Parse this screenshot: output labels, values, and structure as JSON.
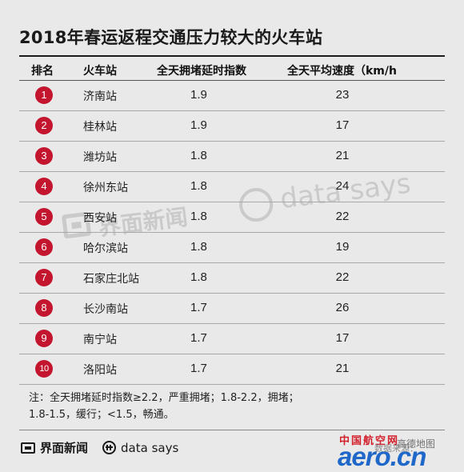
{
  "title": "2018年春运返程交通压力较大的火车站",
  "table": {
    "headers": {
      "rank": "排名",
      "station": "火车站",
      "index": "全天拥堵延时指数",
      "speed": "全天平均速度（km/h"
    },
    "rows": [
      {
        "rank": "1",
        "station": "济南站",
        "index": "1.9",
        "speed": "23"
      },
      {
        "rank": "2",
        "station": "桂林站",
        "index": "1.9",
        "speed": "17"
      },
      {
        "rank": "3",
        "station": "潍坊站",
        "index": "1.8",
        "speed": "21"
      },
      {
        "rank": "4",
        "station": "徐州东站",
        "index": "1.8",
        "speed": "24"
      },
      {
        "rank": "5",
        "station": "西安站",
        "index": "1.8",
        "speed": "22"
      },
      {
        "rank": "6",
        "station": "哈尔滨站",
        "index": "1.8",
        "speed": "19"
      },
      {
        "rank": "7",
        "station": "石家庄北站",
        "index": "1.8",
        "speed": "22"
      },
      {
        "rank": "8",
        "station": "长沙南站",
        "index": "1.7",
        "speed": "26"
      },
      {
        "rank": "9",
        "station": "南宁站",
        "index": "1.7",
        "speed": "17"
      },
      {
        "rank": "10",
        "station": "洛阳站",
        "index": "1.7",
        "speed": "21"
      }
    ]
  },
  "note": {
    "line1": "注：全天拥堵延时指数≥2.2，严重拥堵；1.8-2.2，拥堵；",
    "line2": "1.8-1.5，缓行；<1.5，畅通。"
  },
  "footer": {
    "brand": "界面新闻",
    "datasays": "data says"
  },
  "watermark": {
    "brand": "界面新闻",
    "datasays": "data says"
  },
  "stamp": {
    "cn": "中国航空网",
    "word": "aero.cn",
    "overlay": "高德地图",
    "sub": "数据来源："
  },
  "colors": {
    "background": "#e9e9e9",
    "badge": "#c4152f",
    "aero_blue": "#1f68c9",
    "aero_red": "#d21f2a"
  },
  "chart_data": {
    "type": "table",
    "title": "2018年春运返程交通压力较大的火车站",
    "columns": [
      "排名",
      "火车站",
      "全天拥堵延时指数",
      "全天平均速度（km/h"
    ],
    "rows": [
      [
        1,
        "济南站",
        1.9,
        23
      ],
      [
        2,
        "桂林站",
        1.9,
        17
      ],
      [
        3,
        "潍坊站",
        1.8,
        21
      ],
      [
        4,
        "徐州东站",
        1.8,
        24
      ],
      [
        5,
        "西安站",
        1.8,
        22
      ],
      [
        6,
        "哈尔滨站",
        1.8,
        19
      ],
      [
        7,
        "石家庄北站",
        1.8,
        22
      ],
      [
        8,
        "长沙南站",
        1.7,
        26
      ],
      [
        9,
        "南宁站",
        1.7,
        17
      ],
      [
        10,
        "洛阳站",
        1.7,
        21
      ]
    ]
  }
}
